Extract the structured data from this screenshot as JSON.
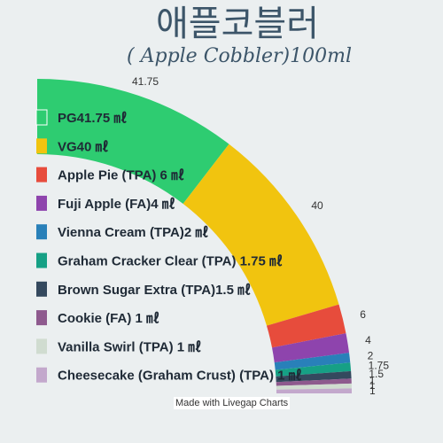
{
  "header": {
    "title": "애플코블러",
    "subtitle": "( Apple Cobbler)100ml"
  },
  "credit": "Made with Livegap Charts",
  "chart_data": {
    "type": "pie",
    "series": [
      {
        "name": "PG41.75 ㎖",
        "value": 41.75,
        "color": "#2ecc71"
      },
      {
        "name": "VG40 ㎖",
        "value": 40,
        "color": "#f1c40f"
      },
      {
        "name": "Apple Pie (TPA) 6 ㎖",
        "value": 6,
        "color": "#e74c3c"
      },
      {
        "name": "Fuji Apple (FA)4 ㎖",
        "value": 4,
        "color": "#8e44ad"
      },
      {
        "name": "Vienna Cream (TPA)2 ㎖",
        "value": 2,
        "color": "#2980b9"
      },
      {
        "name": "Graham Cracker Clear (TPA) 1.75 ㎖",
        "value": 1.75,
        "color": "#16a085"
      },
      {
        "name": "Brown Sugar Extra (TPA)1.5 ㎖",
        "value": 1.5,
        "color": "#34495e"
      },
      {
        "name": "Cookie (FA) 1 ㎖",
        "value": 1,
        "color": "#8e5a8e"
      },
      {
        "name": "Vanilla Swirl (TPA) 1 ㎖",
        "value": 1,
        "color": "#d0dcd0"
      },
      {
        "name": "Cheesecake (Graham Crust) (TPA) 1 ㎖",
        "value": 1,
        "color": "#c3a8cc"
      }
    ],
    "value_labels": [
      "41.75",
      "40",
      "6",
      "4",
      "2",
      "1.75",
      "1.5",
      "1",
      "1",
      "1"
    ],
    "legend_placement": "left"
  }
}
